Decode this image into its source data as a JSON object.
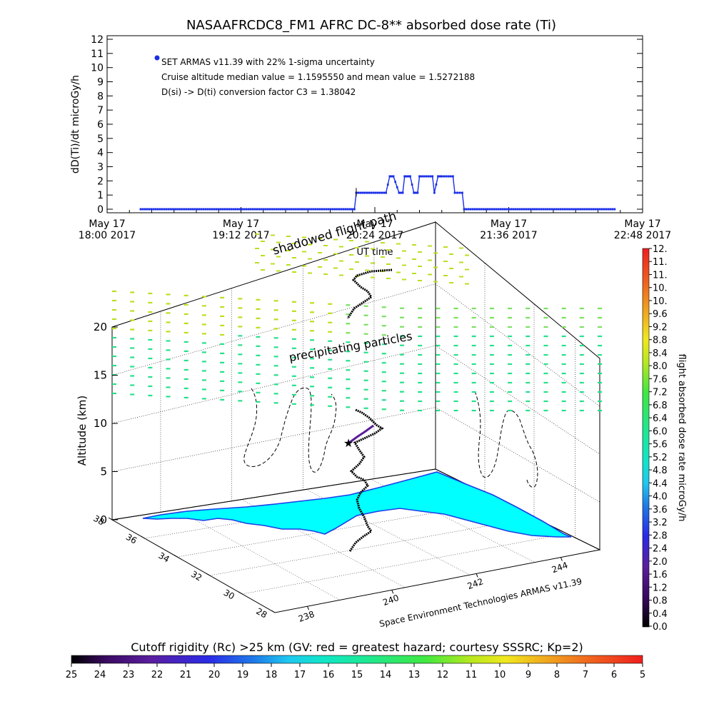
{
  "top_chart": {
    "title": "NASAAFRCDC8_FM1 AFRC DC-8** absorbed dose rate (Ti)",
    "ylabel": "dD(Ti)/dt microGy/h",
    "xlabel": "UT time",
    "legend_label": "SET ARMAS v11.39 with 22% 1-sigma uncertainty",
    "note1": "Cruise altitude median value = 1.1595550 and mean value = 1.5272188",
    "note2": "D(si) -> D(ti) conversion factor C3 = 1.38042",
    "y_ticks": [
      "0",
      "1",
      "2",
      "3",
      "4",
      "5",
      "6",
      "7",
      "8",
      "9",
      "10",
      "11",
      "12"
    ],
    "x_ticks": [
      {
        "line1": "May 17",
        "line2": "18:00 2017"
      },
      {
        "line1": "May 17",
        "line2": "19:12 2017"
      },
      {
        "line1": "May 17",
        "line2": "20:24 2017"
      },
      {
        "line1": "May 17",
        "line2": "21:36 2017"
      },
      {
        "line1": "May 17",
        "line2": "22:48 2017"
      }
    ]
  },
  "chart_data": [
    {
      "type": "line",
      "title": "NASAAFRCDC8_FM1 AFRC DC-8** absorbed dose rate (Ti)",
      "xlabel": "UT time",
      "ylabel": "dD(Ti)/dt microGy/h",
      "xlim": [
        "2017-05-17 18:00",
        "2017-05-17 22:48"
      ],
      "ylim": [
        0,
        12
      ],
      "series": [
        {
          "name": "SET ARMAS v11.39 with 22% 1-sigma uncertainty",
          "color": "#1a2ee8",
          "x": [
            "2017-05-17 18:18",
            "2017-05-17 19:00",
            "2017-05-17 19:45",
            "2017-05-17 20:13",
            "2017-05-17 20:14",
            "2017-05-17 20:30",
            "2017-05-17 20:32",
            "2017-05-17 20:34",
            "2017-05-17 20:37",
            "2017-05-17 20:39",
            "2017-05-17 20:40",
            "2017-05-17 20:43",
            "2017-05-17 20:45",
            "2017-05-17 20:47",
            "2017-05-17 20:48",
            "2017-05-17 20:55",
            "2017-05-17 20:56",
            "2017-05-17 20:58",
            "2017-05-17 21:00",
            "2017-05-17 21:06",
            "2017-05-17 21:07",
            "2017-05-17 21:11",
            "2017-05-17 21:12",
            "2017-05-17 21:50",
            "2017-05-17 22:33"
          ],
          "y": [
            0,
            0,
            0,
            0,
            1.16,
            1.16,
            2.32,
            2.32,
            1.16,
            1.16,
            2.32,
            2.32,
            1.16,
            1.16,
            2.32,
            2.32,
            1.16,
            2.32,
            2.32,
            2.32,
            1.16,
            1.16,
            0,
            0,
            0
          ]
        }
      ]
    },
    {
      "type": "scatter",
      "title": "",
      "xlabel": "Space Environment Technologies ARMAS v11.39",
      "ylabel": "Altitude (km)",
      "zlim": [
        0,
        20
      ],
      "z_ticks": [
        "0",
        "5",
        "10",
        "15",
        "20"
      ],
      "lat_ticks": [
        "28",
        "30",
        "32",
        "34",
        "36",
        "38"
      ],
      "lon_ticks": [
        "238",
        "240",
        "242",
        "244"
      ],
      "annotations": [
        "shadowed flight path",
        "precipitating particles"
      ],
      "colorbar_right": {
        "label": "flight absorbed dose rate microGy/h",
        "ticks": [
          "0.0",
          "0.4",
          "0.8",
          "1.2",
          "1.6",
          "2.0",
          "2.4",
          "2.8",
          "3.2",
          "3.6",
          "4.0",
          "4.4",
          "4.8",
          "5.2",
          "5.6",
          "6.0",
          "6.4",
          "6.8",
          "7.2",
          "7.6",
          "8.0",
          "8.4",
          "8.8",
          "9.2",
          "9.6",
          "10.",
          "10.",
          "11.",
          "11.",
          "12."
        ]
      },
      "colorbar_bottom": {
        "label": "Cutoff rigidity (Rc) >25 km (GV: red = greatest hazard; courtesy SSSRC; Kp=2)",
        "ticks": [
          "25",
          "24",
          "23",
          "22",
          "21",
          "20",
          "19",
          "18",
          "17",
          "16",
          "15",
          "14",
          "13",
          "12",
          "11",
          "10",
          "9",
          "8",
          "7",
          "6",
          "5"
        ]
      }
    }
  ],
  "colors": {
    "data_blue": "#1a2ee8",
    "land_cyan": "#00ffff",
    "coast_blue": "#1a3ee8",
    "dash_green": "#27e08a",
    "dash_yellow": "#b8e01e",
    "track_black": "#000000",
    "track_purple": "#5a1e9a"
  }
}
